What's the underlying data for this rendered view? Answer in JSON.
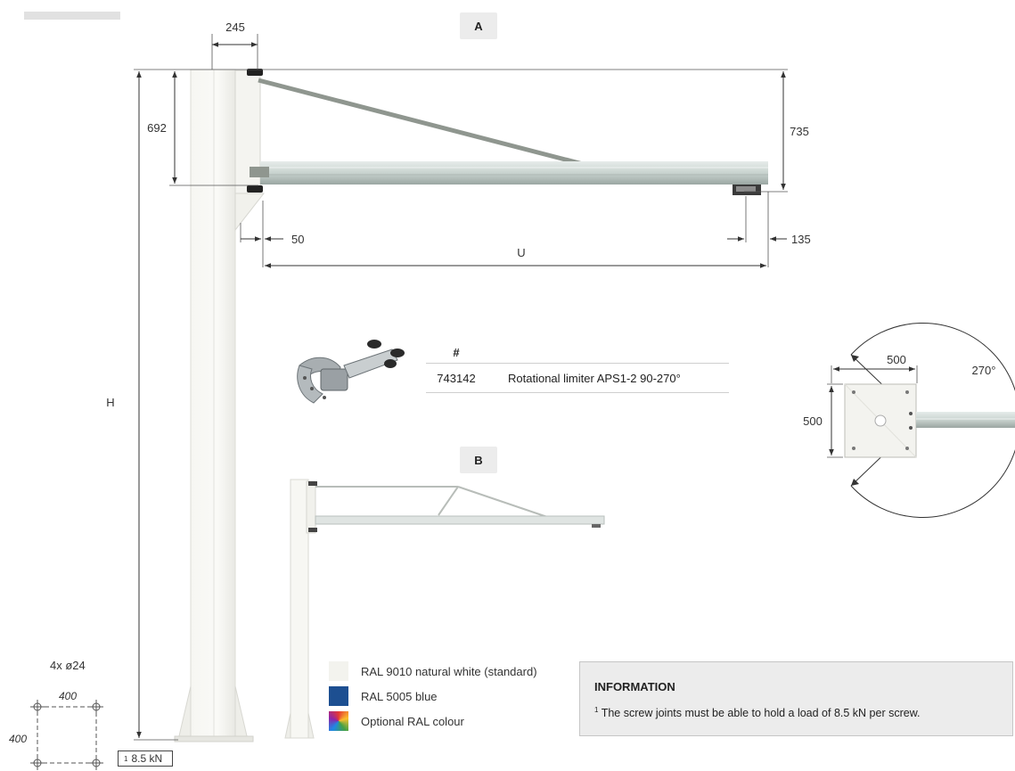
{
  "view_labels": {
    "a": "A",
    "b": "B"
  },
  "dimensions": {
    "top_width": "245",
    "column_height": "692",
    "arm_height": "735",
    "offset_left": "50",
    "offset_right": "135",
    "span": "U",
    "total_height": "H",
    "plate_width": "500",
    "plate_height": "500",
    "rotation": "270°"
  },
  "accessory_table": {
    "header": "#",
    "rows": [
      {
        "number": "743142",
        "description": "Rotational limiter APS1-2 90-270°"
      }
    ]
  },
  "foundation": {
    "bolts": "4x ø24",
    "spacing_x": "400",
    "spacing_y": "400",
    "load_sup": "1",
    "load": "8.5 kN"
  },
  "colour_options": [
    {
      "label": "RAL 9010 natural white (standard)",
      "color": "#f3f3ee"
    },
    {
      "label": "RAL 5005 blue",
      "color": "#1d4f91"
    },
    {
      "label": "Optional RAL colour",
      "color": "rainbow"
    }
  ],
  "information": {
    "title": "INFORMATION",
    "note_sup": "1",
    "note": "The screw joints must be able to hold a load of 8.5 kN per screw."
  }
}
